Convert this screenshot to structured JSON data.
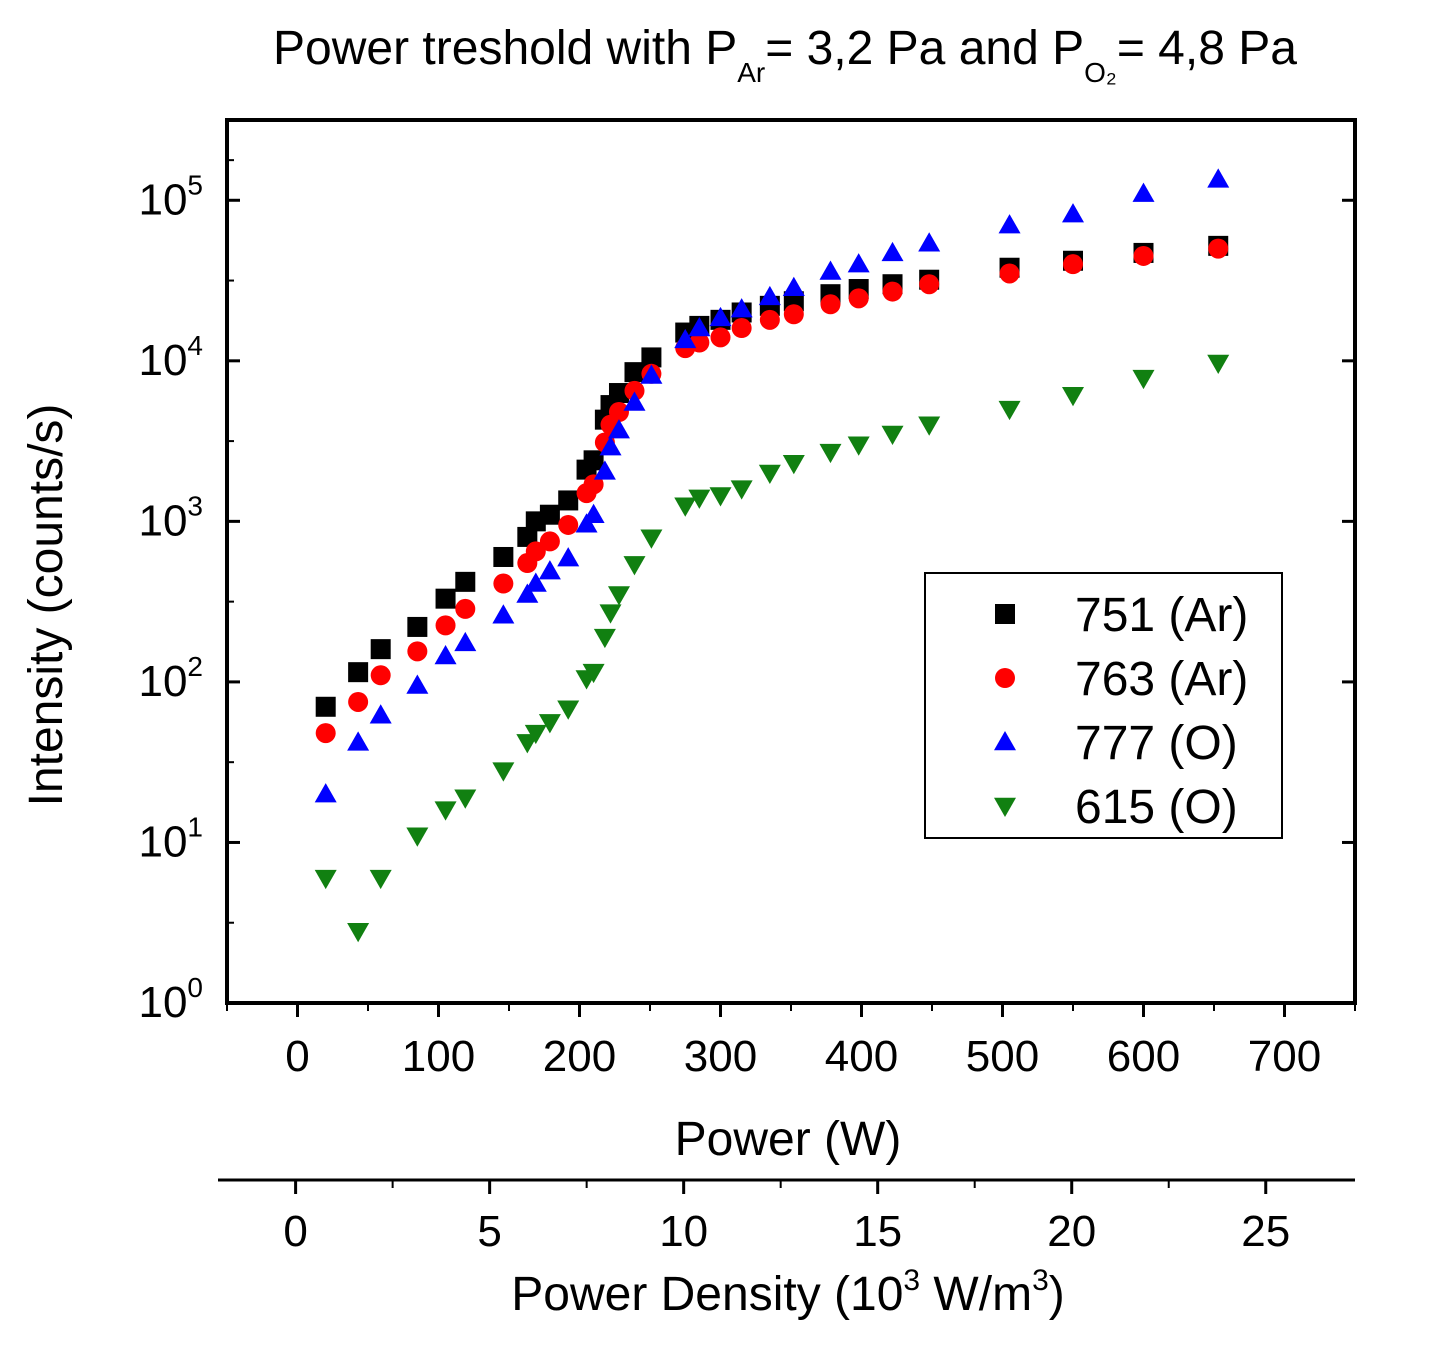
{
  "chart_data": {
    "type": "scatter",
    "title": {
      "parts": [
        "Power treshold with P",
        "Ar",
        "= 3,2 Pa and P",
        "O₂",
        "= 4,8 Pa"
      ]
    },
    "xlabel": "Power (W)",
    "ylabel": "Intensity (counts/s)",
    "x2label": {
      "parts": [
        "Power Density (10",
        "3",
        " W/m",
        "3",
        ")"
      ]
    },
    "xlim": [
      -50,
      750
    ],
    "ylim_log10": [
      0,
      5.5
    ],
    "x_ticks": [
      "0",
      "100",
      "200",
      "300",
      "400",
      "500",
      "600",
      "700"
    ],
    "x_tick_values": [
      0,
      100,
      200,
      300,
      400,
      500,
      600,
      700
    ],
    "y_ticks": [
      {
        "base": "10",
        "exp": "0",
        "value": 1
      },
      {
        "base": "10",
        "exp": "1",
        "value": 10
      },
      {
        "base": "10",
        "exp": "2",
        "value": 100
      },
      {
        "base": "10",
        "exp": "3",
        "value": 1000
      },
      {
        "base": "10",
        "exp": "4",
        "value": 10000
      },
      {
        "base": "10",
        "exp": "5",
        "value": 100000
      }
    ],
    "x2_ticks": [
      "0",
      "5",
      "10",
      "15",
      "20",
      "25"
    ],
    "x2_tick_values": [
      0,
      5,
      10,
      15,
      20,
      25
    ],
    "x2_watts_per_unit": 27.5,
    "x2_lim": [
      -2,
      27.3
    ],
    "legend_position": "center-right",
    "series": [
      {
        "name": "751 (Ar)",
        "marker": "square",
        "color": "#000000",
        "x": [
          20,
          43,
          59,
          85,
          105,
          119,
          146,
          163,
          169,
          179,
          192,
          205,
          210,
          218,
          222,
          228,
          239,
          251,
          275,
          285,
          300,
          315,
          335,
          352,
          378,
          398,
          422,
          448,
          505,
          550,
          600,
          653
        ],
        "y": [
          70,
          115,
          160,
          220,
          330,
          420,
          600,
          800,
          1000,
          1100,
          1350,
          2100,
          2400,
          4300,
          5300,
          6300,
          8500,
          10500,
          15000,
          16500,
          18000,
          20000,
          22000,
          23500,
          26000,
          28000,
          30000,
          32000,
          38000,
          42000,
          47000,
          52000
        ]
      },
      {
        "name": "763 (Ar)",
        "marker": "circle",
        "color": "#ff0000",
        "x": [
          20,
          43,
          59,
          85,
          105,
          119,
          146,
          163,
          169,
          179,
          192,
          205,
          210,
          218,
          222,
          228,
          239,
          251,
          275,
          285,
          300,
          315,
          335,
          352,
          378,
          398,
          422,
          448,
          505,
          550,
          600,
          653
        ],
        "y": [
          48,
          75,
          110,
          155,
          225,
          285,
          410,
          550,
          650,
          750,
          950,
          1500,
          1700,
          3100,
          4000,
          4800,
          6500,
          8300,
          12000,
          13000,
          14000,
          16000,
          18000,
          19500,
          22500,
          24500,
          27000,
          30000,
          35000,
          40000,
          45000,
          50000
        ]
      },
      {
        "name": "777 (O)",
        "marker": "triangle-up",
        "color": "#0000ff",
        "x": [
          20,
          43,
          59,
          85,
          105,
          119,
          146,
          163,
          169,
          179,
          192,
          205,
          210,
          218,
          222,
          228,
          239,
          251,
          275,
          285,
          300,
          315,
          335,
          352,
          378,
          398,
          422,
          448,
          505,
          550,
          600,
          653
        ],
        "y": [
          20,
          42,
          62,
          95,
          145,
          175,
          260,
          350,
          410,
          490,
          590,
          960,
          1100,
          2050,
          2900,
          3700,
          5500,
          8100,
          13500,
          16000,
          18500,
          21000,
          25000,
          28500,
          36000,
          40000,
          47000,
          54000,
          70000,
          82000,
          110000,
          135000
        ]
      },
      {
        "name": "615 (O)",
        "marker": "triangle-down",
        "color": "#118011",
        "x": [
          20,
          43,
          59,
          85,
          105,
          119,
          146,
          163,
          169,
          179,
          192,
          205,
          210,
          218,
          222,
          228,
          239,
          251,
          275,
          285,
          300,
          315,
          335,
          352,
          378,
          398,
          422,
          448,
          505,
          550,
          600,
          653
        ],
        "y": [
          6,
          2.8,
          6,
          11,
          16,
          19,
          28,
          42,
          48,
          56,
          68,
          105,
          115,
          190,
          270,
          350,
          540,
          790,
          1250,
          1400,
          1450,
          1600,
          2000,
          2300,
          2700,
          3000,
          3500,
          4000,
          5000,
          6100,
          7800,
          9700
        ]
      }
    ]
  }
}
